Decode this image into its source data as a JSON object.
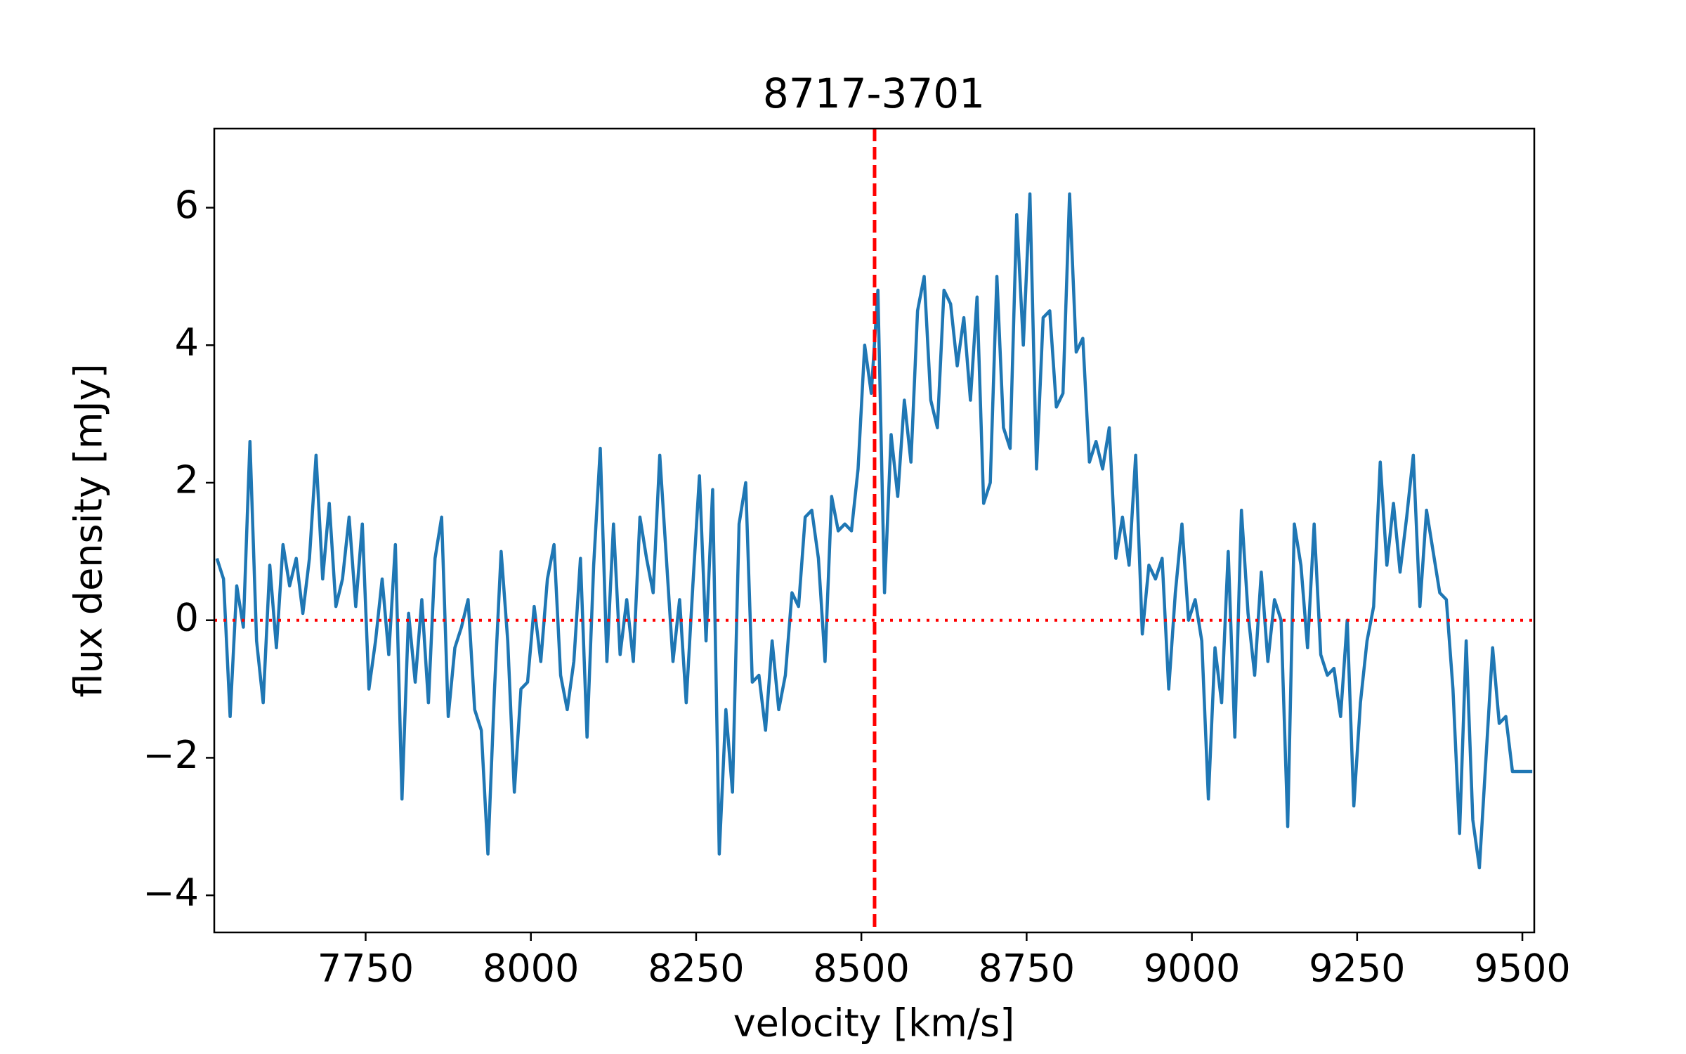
{
  "chart_data": {
    "type": "line",
    "title": "8717-3701",
    "x_label": "velocity [km/s]",
    "y_label": "flux density [mJy]",
    "color": "#1f77b4",
    "x": [
      7525,
      7535,
      7545,
      7555,
      7565,
      7575,
      7585,
      7595,
      7605,
      7615,
      7625,
      7635,
      7645,
      7655,
      7665,
      7675,
      7685,
      7695,
      7705,
      7715,
      7725,
      7735,
      7745,
      7755,
      7765,
      7775,
      7785,
      7795,
      7805,
      7815,
      7825,
      7835,
      7845,
      7855,
      7865,
      7875,
      7885,
      7895,
      7905,
      7915,
      7925,
      7935,
      7945,
      7955,
      7965,
      7975,
      7985,
      7995,
      8005,
      8015,
      8025,
      8035,
      8045,
      8055,
      8065,
      8075,
      8085,
      8095,
      8105,
      8115,
      8125,
      8135,
      8145,
      8155,
      8165,
      8175,
      8185,
      8195,
      8205,
      8215,
      8225,
      8235,
      8245,
      8255,
      8265,
      8275,
      8285,
      8295,
      8305,
      8315,
      8325,
      8335,
      8345,
      8355,
      8365,
      8375,
      8385,
      8395,
      8405,
      8415,
      8425,
      8435,
      8445,
      8455,
      8465,
      8475,
      8485,
      8495,
      8505,
      8515,
      8525,
      8535,
      8545,
      8555,
      8565,
      8575,
      8585,
      8595,
      8605,
      8615,
      8625,
      8635,
      8645,
      8655,
      8665,
      8675,
      8685,
      8695,
      8705,
      8715,
      8725,
      8735,
      8745,
      8755,
      8765,
      8775,
      8785,
      8795,
      8805,
      8815,
      8825,
      8835,
      8845,
      8855,
      8865,
      8875,
      8885,
      8895,
      8905,
      8915,
      8925,
      8935,
      8945,
      8955,
      8965,
      8975,
      8985,
      8995,
      9005,
      9015,
      9025,
      9035,
      9045,
      9055,
      9065,
      9075,
      9085,
      9095,
      9105,
      9115,
      9125,
      9135,
      9145,
      9155,
      9165,
      9175,
      9185,
      9195,
      9205,
      9215,
      9225,
      9235,
      9245,
      9255,
      9265,
      9275,
      9285,
      9295,
      9305,
      9315,
      9325,
      9335,
      9345,
      9355,
      9365,
      9375,
      9385,
      9395,
      9405,
      9415,
      9425,
      9435,
      9445,
      9455,
      9465,
      9475,
      9485,
      9495,
      9505,
      9515
    ],
    "values": [
      0.9,
      0.6,
      -1.4,
      0.5,
      -0.1,
      2.6,
      -0.3,
      -1.2,
      0.8,
      -0.4,
      1.1,
      0.5,
      0.9,
      0.1,
      0.9,
      2.4,
      0.6,
      1.7,
      0.2,
      0.6,
      1.5,
      0.2,
      1.4,
      -1.0,
      -0.3,
      0.6,
      -0.5,
      1.1,
      -2.6,
      0.1,
      -0.9,
      0.3,
      -1.2,
      0.9,
      1.5,
      -1.4,
      -0.4,
      -0.1,
      0.3,
      -1.3,
      -1.6,
      -3.4,
      -1.0,
      1.0,
      -0.3,
      -2.5,
      -1.0,
      -0.9,
      0.2,
      -0.6,
      0.6,
      1.1,
      -0.8,
      -1.3,
      -0.6,
      0.9,
      -1.7,
      0.8,
      2.5,
      -0.6,
      1.4,
      -0.5,
      0.3,
      -0.6,
      1.5,
      0.9,
      0.4,
      2.4,
      0.9,
      -0.6,
      0.3,
      -1.2,
      0.5,
      2.1,
      -0.3,
      1.9,
      -3.4,
      -1.3,
      -2.5,
      1.4,
      2.0,
      -0.9,
      -0.8,
      -1.6,
      -0.3,
      -1.3,
      -0.8,
      0.4,
      0.2,
      1.5,
      1.6,
      0.9,
      -0.6,
      1.8,
      1.3,
      1.4,
      1.3,
      2.2,
      4.0,
      3.3,
      4.8,
      0.4,
      2.7,
      1.8,
      3.2,
      2.3,
      4.5,
      5.0,
      3.2,
      2.8,
      4.8,
      4.6,
      3.7,
      4.4,
      3.2,
      4.7,
      1.7,
      2.0,
      5.0,
      2.8,
      2.5,
      5.9,
      4.0,
      6.2,
      2.2,
      4.4,
      4.5,
      3.1,
      3.3,
      6.2,
      3.9,
      4.1,
      2.3,
      2.6,
      2.2,
      2.8,
      0.9,
      1.5,
      0.8,
      2.4,
      -0.2,
      0.8,
      0.6,
      0.9,
      -1.0,
      0.4,
      1.4,
      0.0,
      0.3,
      -0.3,
      -2.6,
      -0.4,
      -1.2,
      1.0,
      -1.7,
      1.6,
      0.1,
      -0.8,
      0.7,
      -0.6,
      0.3,
      0.0,
      -3.0,
      1.4,
      0.8,
      -0.4,
      1.4,
      -0.5,
      -0.8,
      -0.7,
      -1.4,
      0.0,
      -2.7,
      -1.2,
      -0.3,
      0.2,
      2.3,
      0.8,
      1.7,
      0.7,
      1.5,
      2.4,
      0.2,
      1.6,
      1.0,
      0.4,
      0.3,
      -1.0,
      -3.1,
      -0.3,
      -2.9,
      -3.6,
      -2.0,
      -0.4,
      -1.5,
      -1.4,
      -2.2,
      -2.2,
      -2.2,
      -2.2
    ],
    "xlim": [
      7521,
      9518
    ],
    "ylim": [
      -4.54,
      7.15
    ],
    "xticks": [
      7750,
      8000,
      8250,
      8500,
      8750,
      9000,
      9250,
      9500
    ],
    "yticks": [
      {
        "value": -4,
        "label": "−4"
      },
      {
        "value": -2,
        "label": "−2"
      },
      0,
      2,
      4,
      6
    ],
    "vline": 8520,
    "hline": 0,
    "ref_color": "#ff0000",
    "grid": false
  }
}
